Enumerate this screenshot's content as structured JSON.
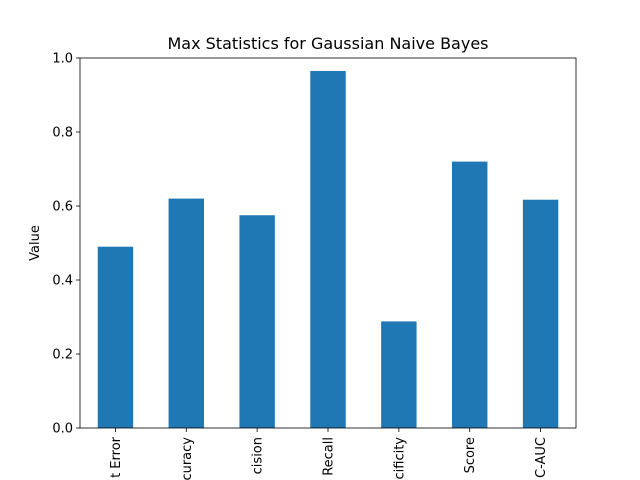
{
  "chart_data": {
    "type": "bar",
    "title": "Max Statistics for Gaussian Naive Bayes",
    "xlabel": "",
    "ylabel": "Value",
    "categories": [
      "t Error",
      "curacy",
      "cision",
      "Recall",
      "cificity",
      "Score",
      "C-AUC"
    ],
    "values": [
      0.49,
      0.62,
      0.575,
      0.965,
      0.288,
      0.72,
      0.617
    ],
    "ylim": [
      0,
      1.0
    ],
    "yticks": [
      "0.0",
      "0.2",
      "0.4",
      "0.6",
      "0.8",
      "1.0"
    ],
    "grid": false,
    "legend": "none",
    "bar_color": "#1f77b4"
  }
}
